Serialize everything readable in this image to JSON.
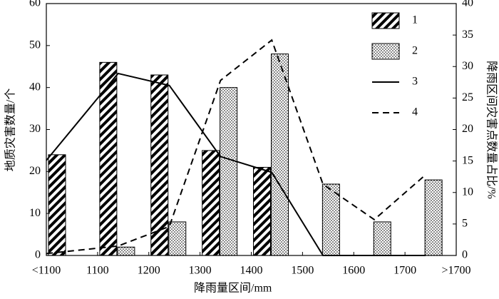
{
  "chart_data": {
    "type": "bar_line",
    "x_label": "降雨量区间/mm",
    "y_label": "地质灾害数量/个",
    "y2_label": "降雨区间灾害点数量占比/%",
    "x_tick_labels": [
      "<1100",
      "1100",
      "1200",
      "1300",
      "1400",
      "1500",
      "1600",
      "1700",
      ">1700"
    ],
    "series": [
      {
        "name": "1",
        "kind": "bar",
        "pattern": "diagonal",
        "color": "#000",
        "values": [
          24,
          46,
          43,
          25,
          21,
          0,
          0,
          0
        ]
      },
      {
        "name": "2",
        "kind": "bar",
        "pattern": "dots",
        "color": "#000",
        "values": [
          0,
          2,
          8,
          40,
          48,
          17,
          8,
          18
        ]
      },
      {
        "name": "3",
        "kind": "line",
        "dash": "solid",
        "color": "#000",
        "axis": "y2",
        "values": [
          15.1,
          28.9,
          27.0,
          15.7,
          13.2,
          0,
          0,
          0
        ]
      },
      {
        "name": "4",
        "kind": "line",
        "dash": "dashed",
        "color": "#000",
        "axis": "y2",
        "values": [
          0.3,
          1.5,
          4.6,
          27.8,
          34.2,
          11.3,
          5.7,
          12.8
        ]
      }
    ],
    "ylim": [
      0,
      60
    ],
    "yticks": [
      0,
      10,
      20,
      30,
      40,
      50,
      60
    ],
    "y2lim": [
      0,
      40
    ],
    "y2ticks": [
      0,
      5,
      10,
      15,
      20,
      25,
      30,
      35,
      40
    ],
    "legend": "upper right"
  }
}
